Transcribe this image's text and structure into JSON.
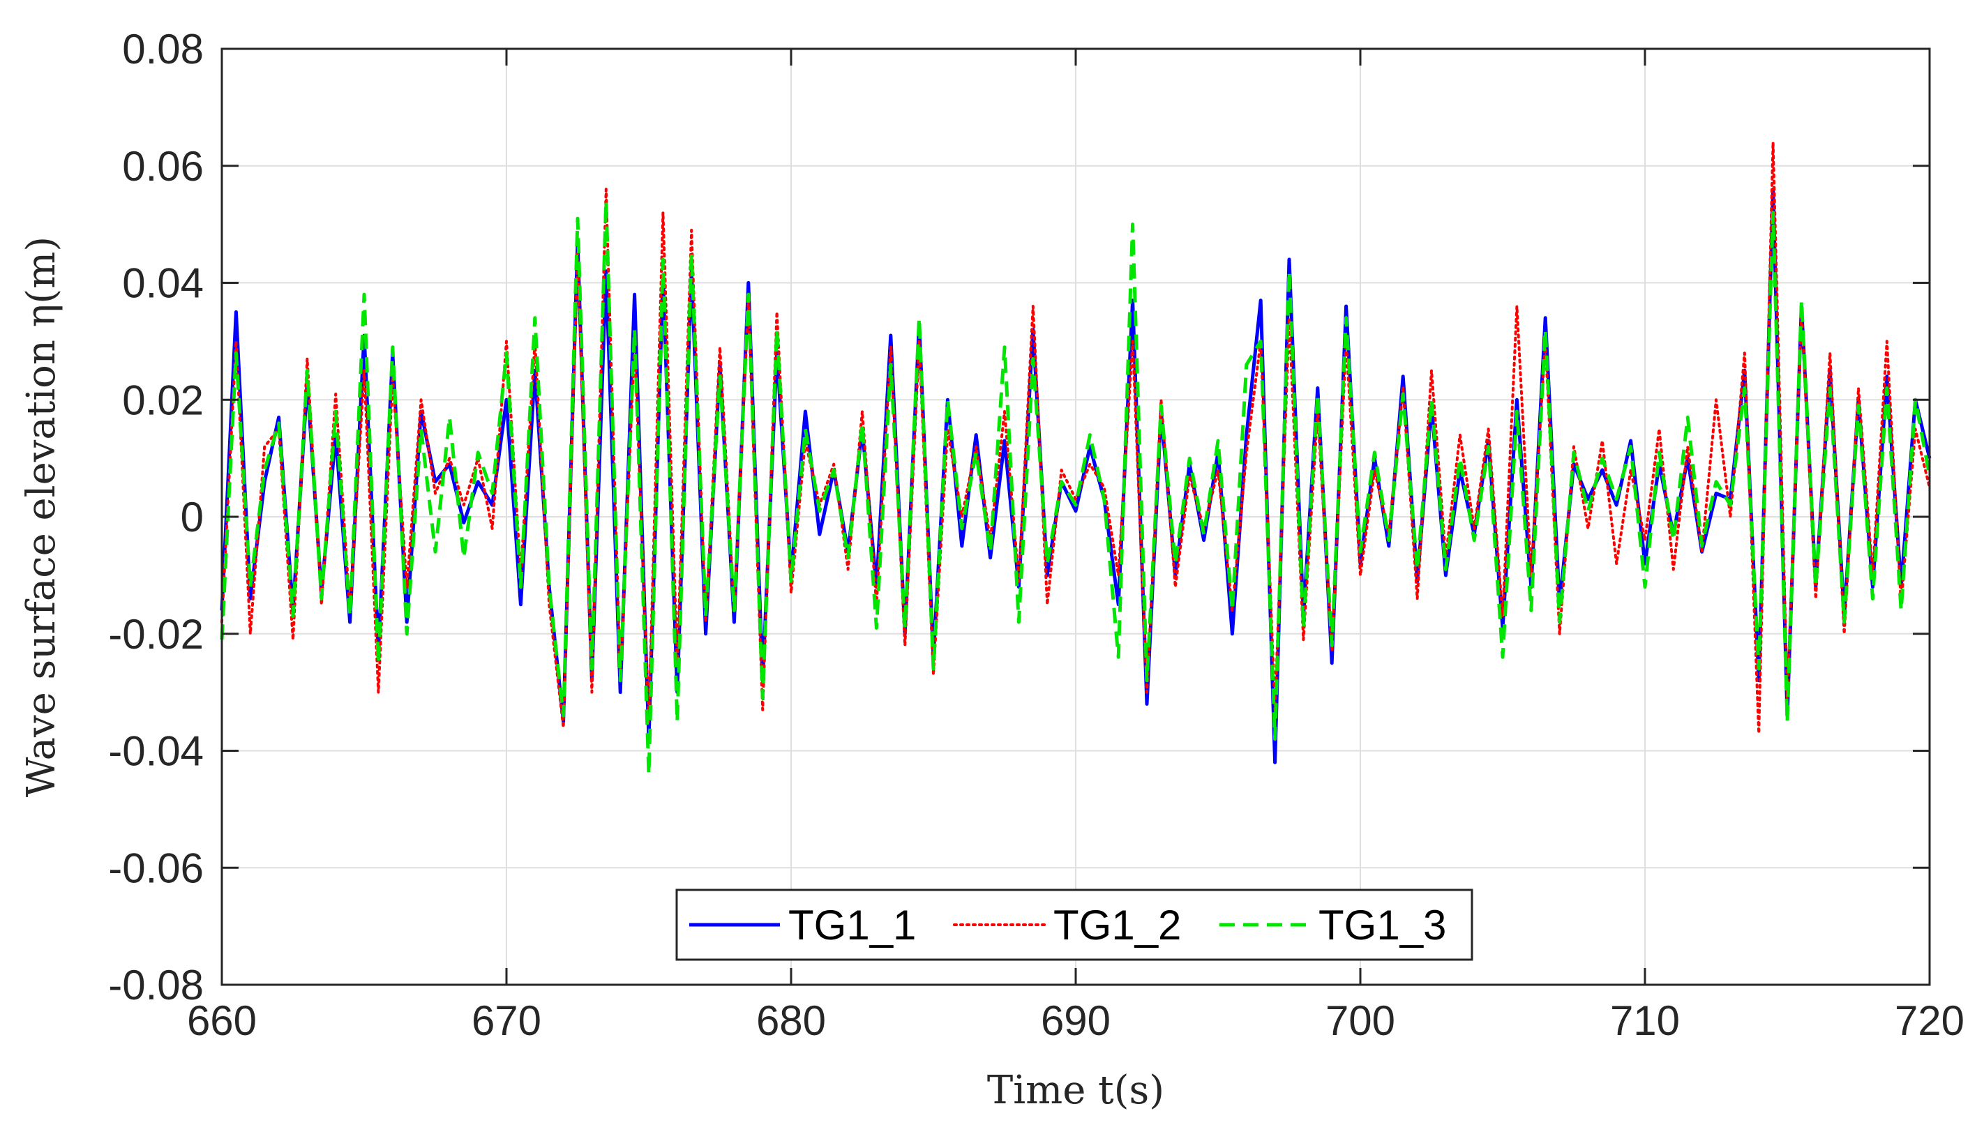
{
  "chart_data": {
    "type": "line",
    "title": "",
    "xlabel": "Time t(s)",
    "ylabel": "Wave surface elevation η(m)",
    "xlim": [
      660,
      720
    ],
    "ylim": [
      -0.08,
      0.08
    ],
    "xticks": [
      660,
      670,
      680,
      690,
      700,
      710,
      720
    ],
    "yticks": [
      -0.08,
      -0.06,
      -0.04,
      -0.02,
      0,
      0.02,
      0.04,
      0.06,
      0.08
    ],
    "xtick_labels": [
      "660",
      "670",
      "680",
      "690",
      "700",
      "710",
      "720"
    ],
    "ytick_labels": [
      "-0.08",
      "-0.06",
      "-0.04",
      "-0.02",
      "0",
      "0.02",
      "0.04",
      "0.06",
      "0.08"
    ],
    "grid": true,
    "legend": {
      "placement": "bottom-center",
      "orientation": "horizontal"
    },
    "series": [
      {
        "name": "TG1_1",
        "color": "#0000ff",
        "style": "solid",
        "x": [
          660.0,
          660.5,
          661.0,
          661.5,
          662.0,
          662.5,
          663.0,
          663.5,
          664.0,
          664.5,
          665.0,
          665.5,
          666.0,
          666.5,
          667.0,
          667.5,
          668.0,
          668.5,
          669.0,
          669.5,
          670.0,
          670.5,
          671.0,
          671.5,
          672.0,
          672.5,
          673.0,
          673.5,
          674.0,
          674.5,
          675.0,
          675.5,
          676.0,
          676.5,
          677.0,
          677.5,
          678.0,
          678.5,
          679.0,
          679.5,
          680.0,
          680.5,
          681.0,
          681.5,
          682.0,
          682.5,
          683.0,
          683.5,
          684.0,
          684.5,
          685.0,
          685.5,
          686.0,
          686.5,
          687.0,
          687.5,
          688.0,
          688.5,
          689.0,
          689.5,
          690.0,
          690.5,
          691.0,
          691.5,
          692.0,
          692.5,
          693.0,
          693.5,
          694.0,
          694.5,
          695.0,
          695.5,
          696.0,
          696.5,
          697.0,
          697.5,
          698.0,
          698.5,
          699.0,
          699.5,
          700.0,
          700.5,
          701.0,
          701.5,
          702.0,
          702.5,
          703.0,
          703.5,
          704.0,
          704.5,
          705.0,
          705.5,
          706.0,
          706.5,
          707.0,
          707.5,
          708.0,
          708.5,
          709.0,
          709.5,
          710.0,
          710.5,
          711.0,
          711.5,
          712.0,
          712.5,
          713.0,
          713.5,
          714.0,
          714.5,
          715.0,
          715.5,
          716.0,
          716.5,
          717.0,
          717.5,
          718.0,
          718.5,
          719.0,
          719.5,
          720.0
        ],
        "y": [
          -0.016,
          0.035,
          -0.014,
          0.006,
          0.017,
          -0.016,
          0.023,
          -0.013,
          0.014,
          -0.018,
          0.031,
          -0.023,
          0.028,
          -0.018,
          0.018,
          0.006,
          0.009,
          -0.001,
          0.006,
          0.002,
          0.02,
          -0.015,
          0.025,
          -0.012,
          -0.035,
          0.047,
          -0.028,
          0.042,
          -0.03,
          0.038,
          -0.038,
          0.041,
          -0.03,
          0.042,
          -0.02,
          0.026,
          -0.018,
          0.04,
          -0.028,
          0.028,
          -0.01,
          0.018,
          -0.003,
          0.008,
          -0.006,
          0.015,
          -0.012,
          0.031,
          -0.02,
          0.033,
          -0.024,
          0.02,
          -0.005,
          0.014,
          -0.007,
          0.013,
          -0.012,
          0.032,
          -0.01,
          0.006,
          0.001,
          0.012,
          0.003,
          -0.015,
          0.037,
          -0.032,
          0.018,
          -0.01,
          0.009,
          -0.004,
          0.011,
          -0.02,
          0.014,
          0.037,
          -0.042,
          0.044,
          -0.017,
          0.022,
          -0.025,
          0.036,
          -0.008,
          0.01,
          -0.005,
          0.024,
          -0.011,
          0.019,
          -0.01,
          0.008,
          -0.003,
          0.013,
          -0.019,
          0.02,
          -0.012,
          0.034,
          -0.015,
          0.009,
          0.003,
          0.008,
          0.002,
          0.013,
          -0.008,
          0.009,
          -0.003,
          0.01,
          -0.006,
          0.004,
          0.003,
          0.025,
          -0.028,
          0.056,
          -0.034,
          0.036,
          -0.012,
          0.025,
          -0.017,
          0.02,
          -0.012,
          0.024,
          -0.012,
          0.02,
          0.01
        ]
      },
      {
        "name": "TG1_2",
        "color": "#ff0000",
        "style": "dotted",
        "x": [
          660.0,
          660.5,
          661.0,
          661.5,
          662.0,
          662.5,
          663.0,
          663.5,
          664.0,
          664.5,
          665.0,
          665.5,
          666.0,
          666.5,
          667.0,
          667.5,
          668.0,
          668.5,
          669.0,
          669.5,
          670.0,
          670.5,
          671.0,
          671.5,
          672.0,
          672.5,
          673.0,
          673.5,
          674.0,
          674.5,
          675.0,
          675.5,
          676.0,
          676.5,
          677.0,
          677.5,
          678.0,
          678.5,
          679.0,
          679.5,
          680.0,
          680.5,
          681.0,
          681.5,
          682.0,
          682.5,
          683.0,
          683.5,
          684.0,
          684.5,
          685.0,
          685.5,
          686.0,
          686.5,
          687.0,
          687.5,
          688.0,
          688.5,
          689.0,
          689.5,
          690.0,
          690.5,
          691.0,
          691.5,
          692.0,
          692.5,
          693.0,
          693.5,
          694.0,
          694.5,
          695.0,
          695.5,
          696.0,
          696.5,
          697.0,
          697.5,
          698.0,
          698.5,
          699.0,
          699.5,
          700.0,
          700.5,
          701.0,
          701.5,
          702.0,
          702.5,
          703.0,
          703.5,
          704.0,
          704.5,
          705.0,
          705.5,
          706.0,
          706.5,
          707.0,
          707.5,
          708.0,
          708.5,
          709.0,
          709.5,
          710.0,
          710.5,
          711.0,
          711.5,
          712.0,
          712.5,
          713.0,
          713.5,
          714.0,
          714.5,
          715.0,
          715.5,
          716.0,
          716.5,
          717.0,
          717.5,
          718.0,
          718.5,
          719.0,
          719.5,
          720.0
        ],
        "y": [
          -0.018,
          0.03,
          -0.02,
          0.012,
          0.015,
          -0.021,
          0.027,
          -0.015,
          0.021,
          -0.016,
          0.025,
          -0.03,
          0.024,
          -0.012,
          0.02,
          0.004,
          0.01,
          0.002,
          0.01,
          -0.002,
          0.03,
          -0.01,
          0.03,
          -0.015,
          -0.036,
          0.045,
          -0.03,
          0.056,
          -0.028,
          0.03,
          -0.035,
          0.052,
          -0.025,
          0.049,
          -0.018,
          0.029,
          -0.016,
          0.037,
          -0.033,
          0.035,
          -0.013,
          0.013,
          0.002,
          0.009,
          -0.009,
          0.018,
          -0.015,
          0.029,
          -0.022,
          0.03,
          -0.027,
          0.015,
          0.0,
          0.012,
          -0.004,
          0.018,
          -0.011,
          0.036,
          -0.015,
          0.008,
          0.003,
          0.009,
          0.005,
          -0.01,
          0.03,
          -0.03,
          0.02,
          -0.012,
          0.007,
          -0.002,
          0.008,
          -0.016,
          0.011,
          0.03,
          -0.033,
          0.034,
          -0.021,
          0.018,
          -0.023,
          0.03,
          -0.01,
          0.008,
          -0.003,
          0.022,
          -0.014,
          0.025,
          -0.007,
          0.014,
          -0.002,
          0.015,
          -0.017,
          0.036,
          -0.01,
          0.03,
          -0.02,
          0.012,
          -0.002,
          0.013,
          -0.008,
          0.008,
          -0.004,
          0.015,
          -0.009,
          0.012,
          -0.006,
          0.02,
          0.0,
          0.028,
          -0.037,
          0.064,
          -0.031,
          0.035,
          -0.014,
          0.028,
          -0.02,
          0.022,
          -0.01,
          0.03,
          -0.015,
          0.015,
          0.005
        ]
      },
      {
        "name": "TG1_3",
        "color": "#00e600",
        "style": "dashed",
        "x": [
          660.0,
          660.5,
          661.0,
          661.5,
          662.0,
          662.5,
          663.0,
          663.5,
          664.0,
          664.5,
          665.0,
          665.5,
          666.0,
          666.5,
          667.0,
          667.5,
          668.0,
          668.5,
          669.0,
          669.5,
          670.0,
          670.5,
          671.0,
          671.5,
          672.0,
          672.5,
          673.0,
          673.5,
          674.0,
          674.5,
          675.0,
          675.5,
          676.0,
          676.5,
          677.0,
          677.5,
          678.0,
          678.5,
          679.0,
          679.5,
          680.0,
          680.5,
          681.0,
          681.5,
          682.0,
          682.5,
          683.0,
          683.5,
          684.0,
          684.5,
          685.0,
          685.5,
          686.0,
          686.5,
          687.0,
          687.5,
          688.0,
          688.5,
          689.0,
          689.5,
          690.0,
          690.5,
          691.0,
          691.5,
          692.0,
          692.5,
          693.0,
          693.5,
          694.0,
          694.5,
          695.0,
          695.5,
          696.0,
          696.5,
          697.0,
          697.5,
          698.0,
          698.5,
          699.0,
          699.5,
          700.0,
          700.5,
          701.0,
          701.5,
          702.0,
          702.5,
          703.0,
          703.5,
          704.0,
          704.5,
          705.0,
          705.5,
          706.0,
          706.5,
          707.0,
          707.5,
          708.0,
          708.5,
          709.0,
          709.5,
          710.0,
          710.5,
          711.0,
          711.5,
          712.0,
          712.5,
          713.0,
          713.5,
          714.0,
          714.5,
          715.0,
          715.5,
          716.0,
          716.5,
          717.0,
          717.5,
          718.0,
          718.5,
          719.0,
          719.5,
          720.0
        ],
        "y": [
          -0.021,
          0.028,
          -0.012,
          0.008,
          0.016,
          -0.017,
          0.025,
          -0.014,
          0.018,
          -0.017,
          0.038,
          -0.025,
          0.029,
          -0.02,
          0.015,
          -0.006,
          0.017,
          -0.007,
          0.011,
          0.004,
          0.028,
          -0.012,
          0.034,
          -0.012,
          -0.034,
          0.051,
          -0.026,
          0.054,
          -0.028,
          0.032,
          -0.044,
          0.044,
          -0.035,
          0.045,
          -0.017,
          0.024,
          -0.016,
          0.038,
          -0.031,
          0.032,
          -0.011,
          0.015,
          0.001,
          0.008,
          -0.007,
          0.016,
          -0.019,
          0.026,
          -0.019,
          0.034,
          -0.026,
          0.02,
          -0.002,
          0.011,
          -0.006,
          0.029,
          -0.018,
          0.027,
          -0.008,
          0.006,
          0.002,
          0.014,
          0.003,
          -0.024,
          0.05,
          -0.028,
          0.019,
          -0.008,
          0.01,
          -0.003,
          0.013,
          -0.016,
          0.026,
          0.03,
          -0.038,
          0.042,
          -0.019,
          0.021,
          -0.022,
          0.034,
          -0.006,
          0.011,
          -0.004,
          0.021,
          -0.009,
          0.02,
          -0.009,
          0.01,
          -0.004,
          0.012,
          -0.024,
          0.018,
          -0.016,
          0.032,
          -0.018,
          0.011,
          0.001,
          0.01,
          0.003,
          0.012,
          -0.012,
          0.011,
          -0.004,
          0.017,
          -0.005,
          0.006,
          0.002,
          0.022,
          -0.026,
          0.052,
          -0.035,
          0.037,
          -0.012,
          0.022,
          -0.018,
          0.019,
          -0.014,
          0.022,
          -0.016,
          0.02,
          0.007
        ]
      }
    ]
  }
}
